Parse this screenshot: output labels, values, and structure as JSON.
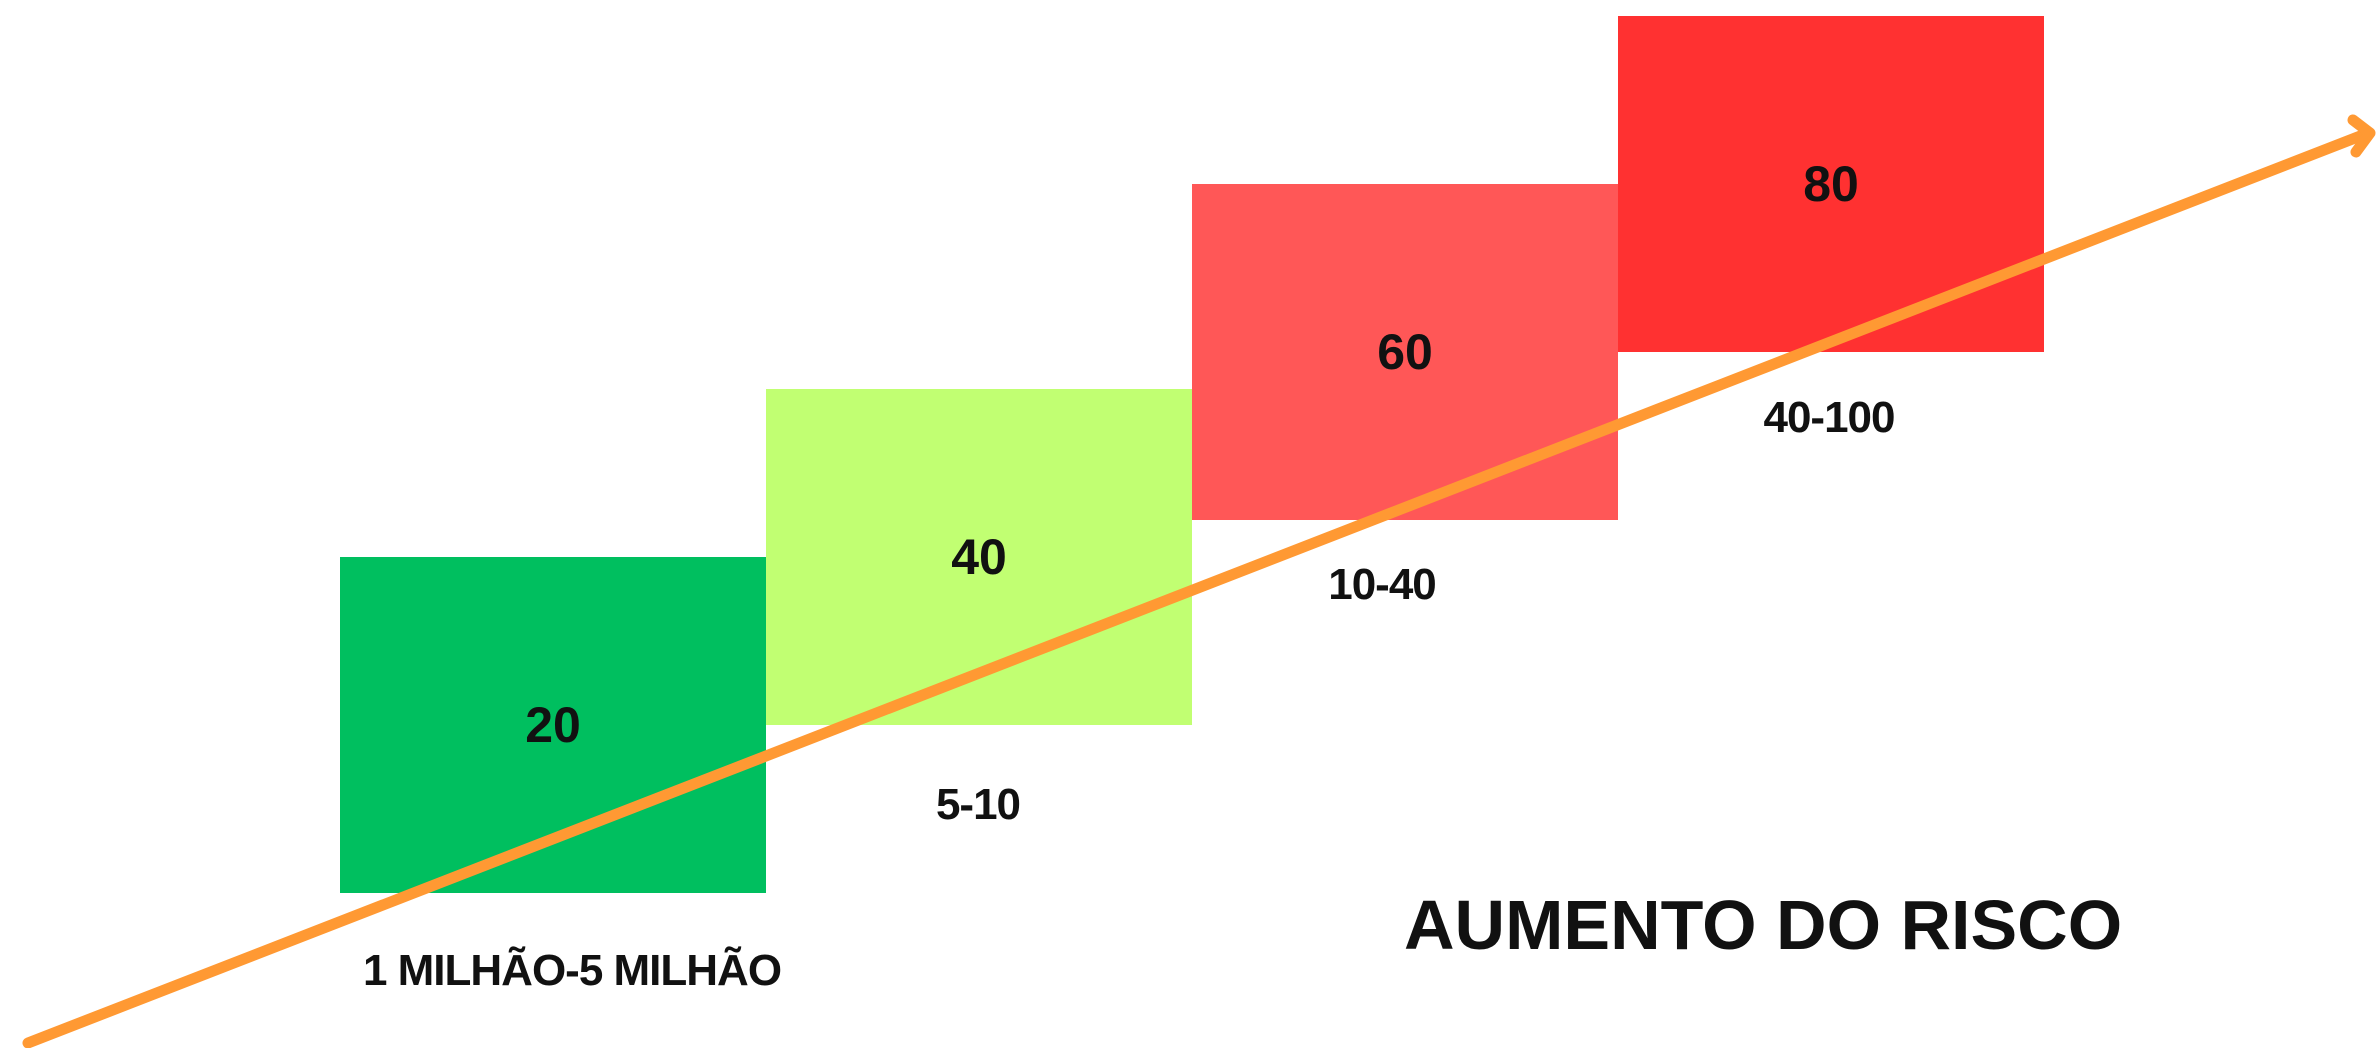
{
  "diagram": {
    "title": "AUMENTO DO RISCO",
    "arrow_color": "#FF9933",
    "steps": [
      {
        "value": "20",
        "range": "1 MILHÃO-5 MILHÃO",
        "color": "#00BF5F"
      },
      {
        "value": "40",
        "range": "5-10",
        "color": "#C1FF72"
      },
      {
        "value": "60",
        "range": "10-40",
        "color": "#FF5757"
      },
      {
        "value": "80",
        "range": "40-100",
        "color": "#FF3131"
      }
    ]
  }
}
